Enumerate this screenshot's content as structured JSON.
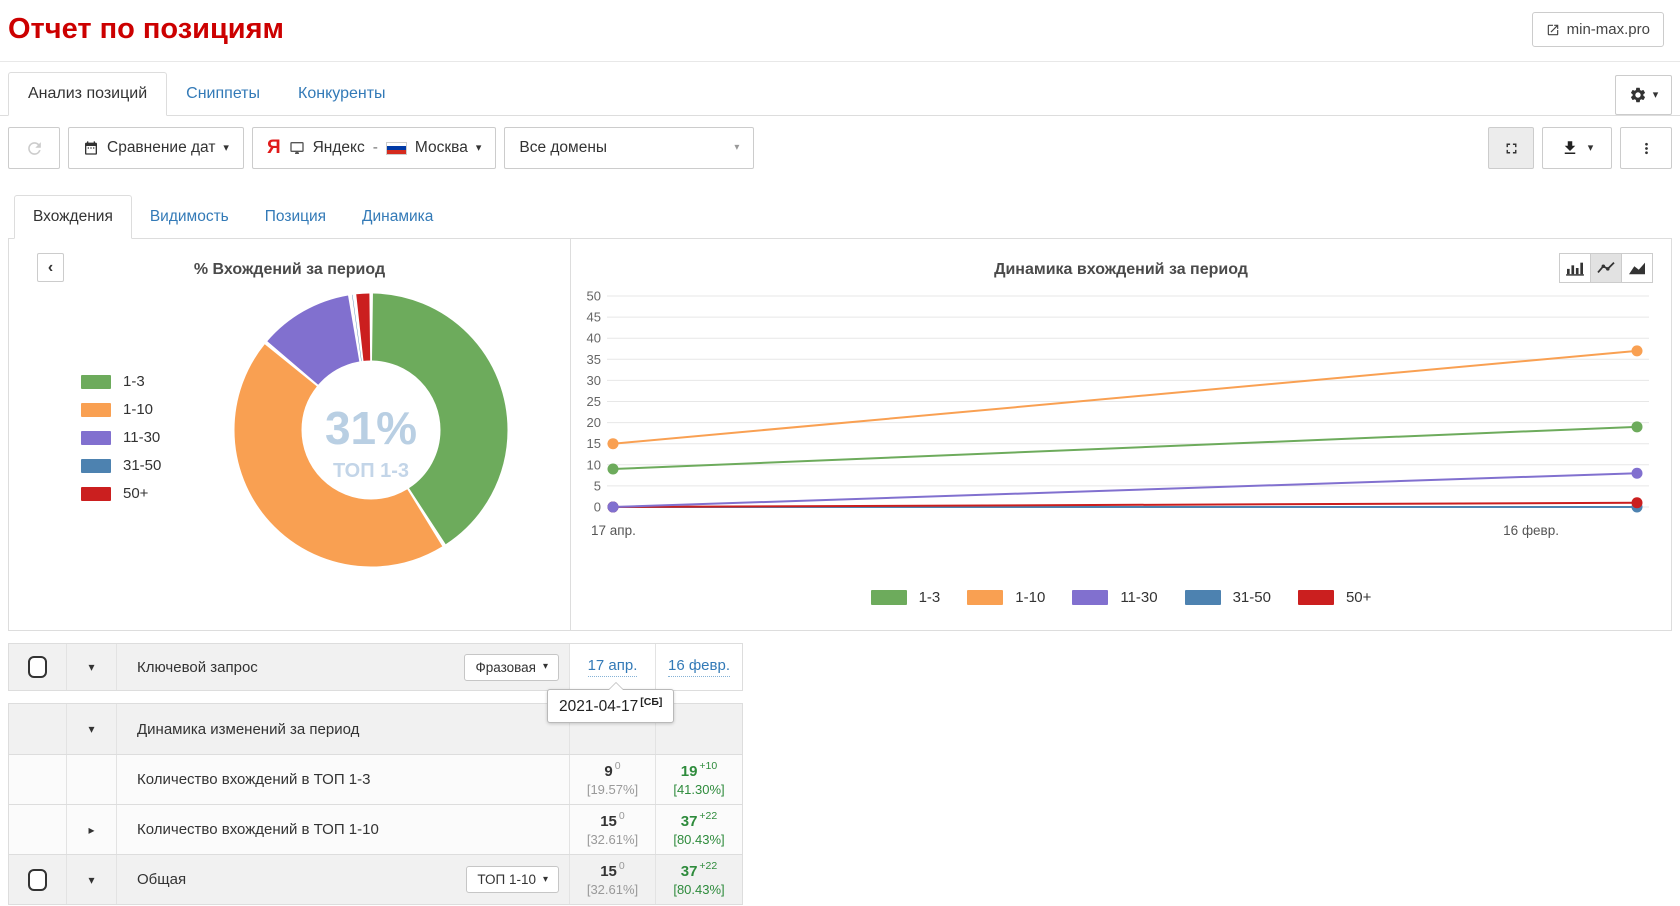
{
  "page": {
    "title": "Отчет по позициям",
    "domain_link": "min-max.pro"
  },
  "main_tabs": [
    {
      "label": "Анализ позиций",
      "active": true
    },
    {
      "label": "Сниппеты",
      "active": false
    },
    {
      "label": "Конкуренты",
      "active": false
    }
  ],
  "toolbar": {
    "compare_dates": "Сравнение дат",
    "engine_letter": "Я",
    "engine": "Яндекс",
    "separator": "-",
    "region": "Москва",
    "domains_select": "Все домены"
  },
  "chart_tabs": [
    {
      "label": "Вхождения",
      "active": true
    },
    {
      "label": "Видимость",
      "active": false
    },
    {
      "label": "Позиция",
      "active": false
    },
    {
      "label": "Динамика",
      "active": false
    }
  ],
  "chart_data": [
    {
      "type": "pie",
      "donut": true,
      "title": "% Вхождений за период",
      "center_value": "31%",
      "center_label": "ТОП 1-3",
      "labels": [
        "1-3",
        "1-10",
        "11-30",
        "31-50",
        "50+"
      ],
      "values": [
        41,
        45,
        11.5,
        0.5,
        2
      ],
      "colors": [
        "#6dab5c",
        "#f9a052",
        "#8170cf",
        "#4d82b0",
        "#cb1f1f"
      ],
      "legend_position": "left"
    },
    {
      "type": "line",
      "title": "Динамика вхождений за период",
      "x": [
        "17 апр.",
        "16 февр."
      ],
      "series": [
        {
          "name": "1-3",
          "color": "#6dab5c",
          "values": [
            9,
            19
          ]
        },
        {
          "name": "1-10",
          "color": "#f9a052",
          "values": [
            15,
            37
          ]
        },
        {
          "name": "11-30",
          "color": "#8170cf",
          "values": [
            0,
            8
          ]
        },
        {
          "name": "31-50",
          "color": "#4d82b0",
          "values": [
            0,
            0
          ]
        },
        {
          "name": "50+",
          "color": "#cb1f1f",
          "values": [
            0,
            1
          ]
        }
      ],
      "ylim": [
        0,
        50
      ],
      "ytick_step": 5,
      "grid": true,
      "legend_position": "bottom"
    }
  ],
  "table": {
    "header": {
      "label": "Ключевой запрос",
      "match_type": "Фразовая",
      "date1": "17 апр.",
      "date2": "16 февр."
    },
    "tooltip": {
      "date": "2021-04-17",
      "day": "[СБ]"
    },
    "rows": [
      {
        "kind": "group",
        "caret": "down",
        "checkbox": false,
        "label": "Динамика изменений за период",
        "badge": null,
        "v1": null,
        "v2": null
      },
      {
        "kind": "data",
        "caret": null,
        "checkbox": false,
        "label": "Количество вхождений в ТОП 1-3",
        "badge": null,
        "v1": {
          "num": "9",
          "delta": "0",
          "pct": "[19.57%]",
          "positive": false
        },
        "v2": {
          "num": "19",
          "delta": "+10",
          "pct": "[41.30%]",
          "positive": true
        }
      },
      {
        "kind": "data",
        "caret": "right",
        "checkbox": false,
        "label": "Количество вхождений в ТОП 1-10",
        "badge": null,
        "v1": {
          "num": "15",
          "delta": "0",
          "pct": "[32.61%]",
          "positive": false
        },
        "v2": {
          "num": "37",
          "delta": "+22",
          "pct": "[80.43%]",
          "positive": true
        }
      },
      {
        "kind": "total",
        "caret": "down",
        "checkbox": true,
        "label": "Общая",
        "badge": "ТОП 1-10",
        "v1": {
          "num": "15",
          "delta": "0",
          "pct": "[32.61%]",
          "positive": false
        },
        "v2": {
          "num": "37",
          "delta": "+22",
          "pct": "[80.43%]",
          "positive": true
        }
      }
    ]
  },
  "icons": {
    "caret_down": "▾",
    "caret_right": "▸",
    "chevron_left": "‹"
  },
  "colors": {
    "title_red": "#cc0000",
    "link_blue": "#337ab7",
    "positive_green": "#2e8b3c",
    "muted_gray": "#999999",
    "yandex_red": "#e01a1a",
    "donut_center_text": "#b9cfe3",
    "flag_stripes": [
      "#ffffff",
      "#0039a6",
      "#d52b1e"
    ]
  }
}
